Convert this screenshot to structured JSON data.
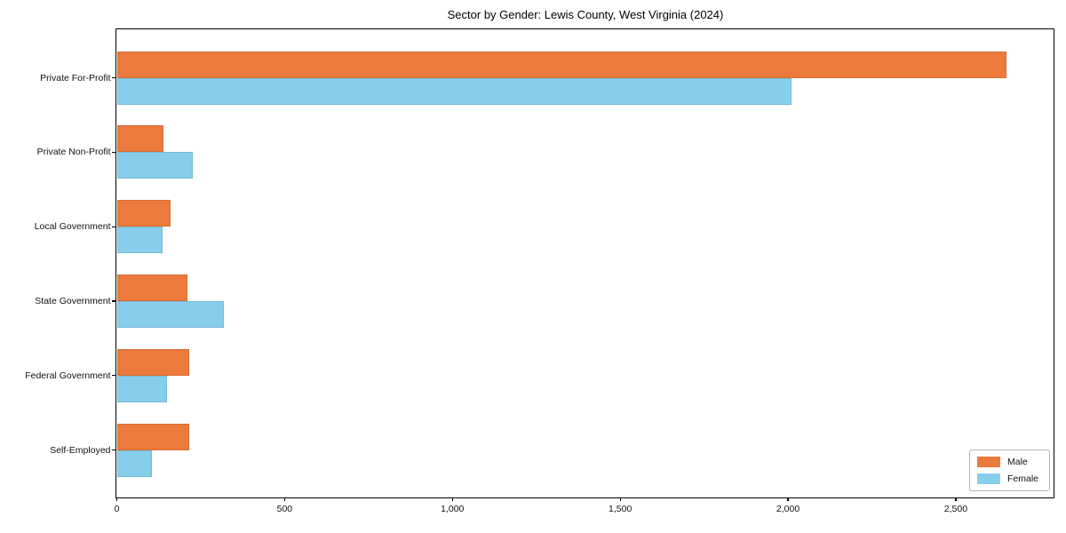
{
  "chart_data": {
    "type": "bar",
    "orientation": "horizontal",
    "title": "Sector by Gender: Lewis County, West Virginia (2024)",
    "categories": [
      "Private For-Profit",
      "Private Non-Profit",
      "Local Government",
      "State Government",
      "Federal Government",
      "Self-Employed"
    ],
    "series": [
      {
        "name": "Male",
        "color": "#EC7A3C",
        "values": [
          2650,
          140,
          160,
          210,
          215,
          215
        ]
      },
      {
        "name": "Female",
        "color": "#87CEEB",
        "values": [
          2010,
          225,
          135,
          320,
          150,
          105
        ]
      }
    ],
    "xlabel": "",
    "ylabel": "",
    "xlim": [
      0,
      2790
    ],
    "xticks": [
      0,
      500,
      1000,
      1500,
      2000,
      2500
    ],
    "xtick_labels": [
      "0",
      "500",
      "1,000",
      "1,500",
      "2,000",
      "2,500"
    ],
    "grid": false,
    "legend_position": "lower right"
  }
}
